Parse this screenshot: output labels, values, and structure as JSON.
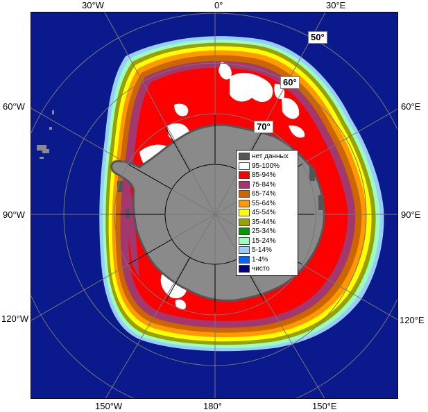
{
  "map": {
    "ocean_color": "#0a1a8c",
    "land_color": "#8a8a8a",
    "ice_colors": {
      "c95_100": "#ffffff",
      "c85_94": "#ff0000",
      "c75_84": "#a3386e",
      "c65_74": "#cc6600",
      "c55_64": "#ff9900",
      "c45_54": "#ffff00",
      "c35_44": "#99a000",
      "c25_34": "#009900",
      "c15_24": "#99ffbb",
      "c5_14": "#99ccff",
      "c1_4": "#0066ff"
    }
  },
  "edge_labels": {
    "top_30w": "30°W",
    "top_0": "0°",
    "top_30e": "30°E",
    "left_60w": "60°W",
    "right_60e": "60°E",
    "left_90w": "90°W",
    "right_90e": "90°E",
    "left_120w": "120°W",
    "right_120e": "120°E",
    "bottom_150w": "150°W",
    "bottom_180": "180°",
    "bottom_150e": "150°E"
  },
  "lat_labels": {
    "lat50": "50°",
    "lat60": "60°",
    "lat70": "70°"
  },
  "legend": {
    "items": [
      {
        "label": "нет данных",
        "color": "#555555"
      },
      {
        "label": "95-100%",
        "color": "#ffffff"
      },
      {
        "label": "85-94%",
        "color": "#ff0000"
      },
      {
        "label": "75-84%",
        "color": "#a3386e"
      },
      {
        "label": "65-74%",
        "color": "#cc6600"
      },
      {
        "label": "55-64%",
        "color": "#ff9900"
      },
      {
        "label": "45-54%",
        "color": "#ffff00"
      },
      {
        "label": "35-44%",
        "color": "#99a000"
      },
      {
        "label": "25-34%",
        "color": "#009900"
      },
      {
        "label": "15-24%",
        "color": "#99ffbb"
      },
      {
        "label": "5-14%",
        "color": "#99ccff"
      },
      {
        "label": "1-4%",
        "color": "#0066ff"
      },
      {
        "label": "чисто",
        "color": "#000080"
      }
    ]
  }
}
